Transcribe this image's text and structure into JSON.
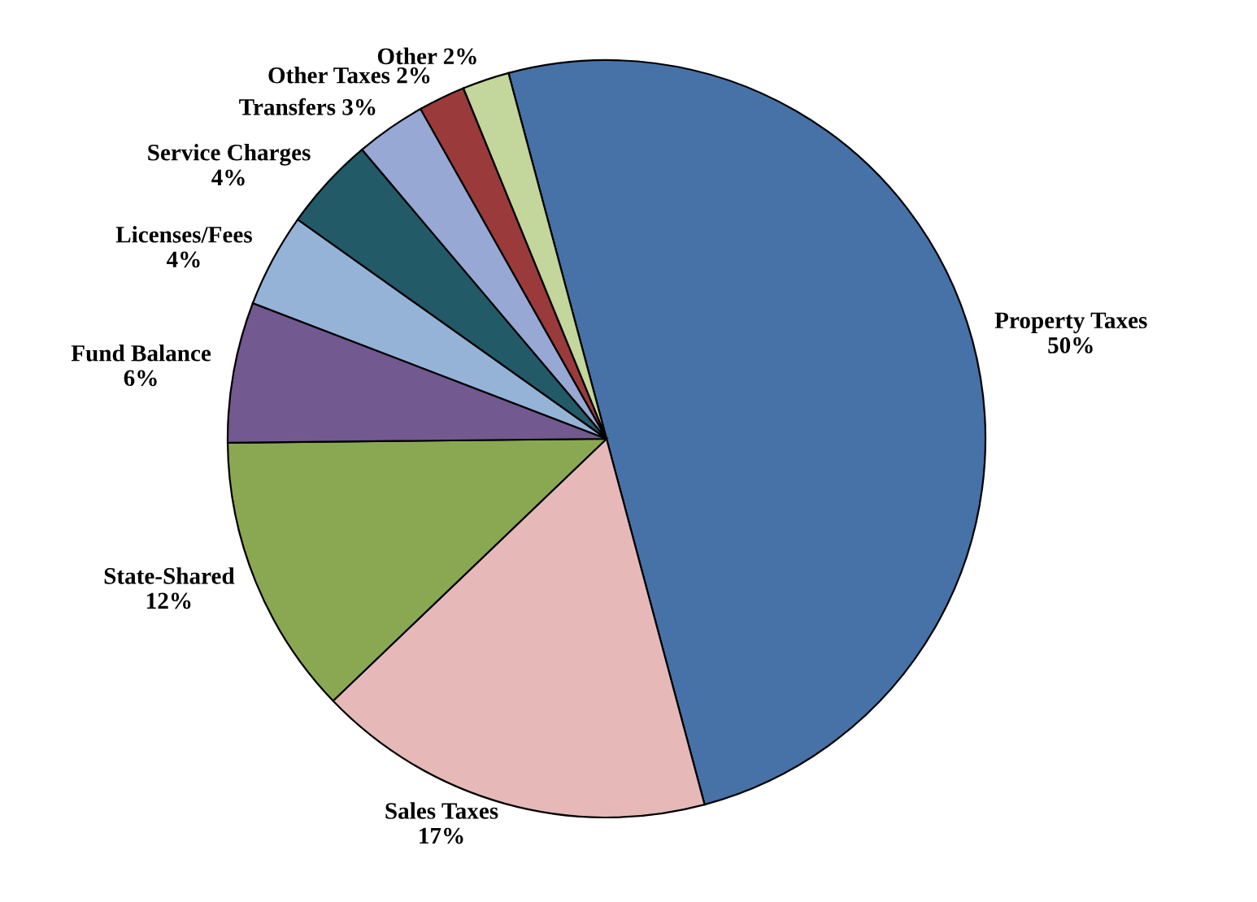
{
  "chart_data": {
    "type": "pie",
    "categories": [
      "Property Taxes",
      "Sales Taxes",
      "State-Shared",
      "Fund Balance",
      "Licenses/Fees",
      "Service Charges",
      "Transfers",
      "Other Taxes",
      "Other"
    ],
    "values": [
      50,
      17,
      12,
      6,
      4,
      4,
      3,
      2,
      2
    ],
    "value_labels": [
      "50%",
      "17%",
      "12%",
      "6%",
      "4%",
      "4%",
      "3%",
      "2%",
      "2%"
    ],
    "colors": [
      "#4672a8",
      "#e6b9b8",
      "#8aa852",
      "#72598f",
      "#95b3d7",
      "#235a68",
      "#98a8d4",
      "#9b3a3a",
      "#c3d69b"
    ]
  }
}
